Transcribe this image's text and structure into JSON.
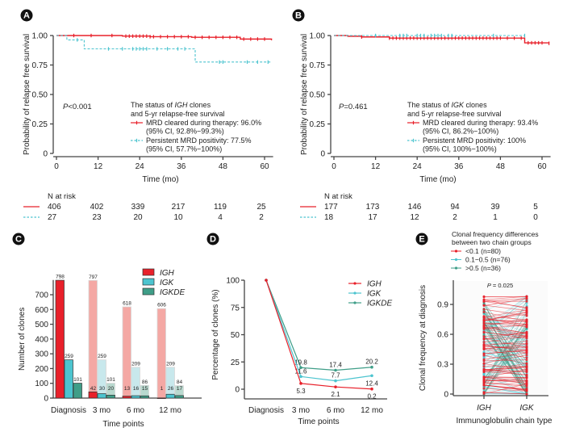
{
  "colors": {
    "red": "#e8202a",
    "cyan": "#4cc4cf",
    "teal": "#3f9e88",
    "light_red": "#f4a8a4",
    "light_cyan": "#c8e8ec",
    "light_teal": "#b9d9cf"
  },
  "chart_data": [
    {
      "panel": "A",
      "type": "line",
      "subtype": "kaplan-meier",
      "ylabel": "Probability of relapse free survival",
      "xlabel": "Time (mo)",
      "xlim": [
        0,
        62
      ],
      "ylim": [
        0,
        1
      ],
      "xticks": [
        "0",
        "12",
        "24",
        "36",
        "48",
        "60"
      ],
      "yticks": [
        "0",
        "0.25",
        "0.50",
        "0.75",
        "1.00"
      ],
      "pvalue": "P<0.001",
      "legend_title_1": "The status of IGH clones",
      "legend_title_2": "and 5-yr relapse-free survival",
      "series": [
        {
          "name": "MRD cleared during therapy: 96.0%",
          "ci": "(95% CI, 92.8%−99.3%)",
          "style": "solid-red",
          "steps": [
            [
              0,
              1.0
            ],
            [
              19,
              0.995
            ],
            [
              27,
              0.99
            ],
            [
              39,
              0.985
            ],
            [
              53,
              0.97
            ],
            [
              62,
              0.96
            ]
          ],
          "censor_x": [
            5,
            10,
            16,
            20,
            21,
            22,
            23,
            24,
            25,
            26,
            27,
            28,
            30,
            32,
            34,
            36,
            38,
            40,
            42,
            44,
            46,
            48,
            50,
            52,
            54,
            56,
            58,
            60
          ]
        },
        {
          "name": "Persistent MRD positivity: 77.5%",
          "ci": "(95% CI, 57.7%−100%)",
          "style": "dashed-cyan",
          "steps": [
            [
              0,
              1.0
            ],
            [
              3,
              0.963
            ],
            [
              8,
              0.887
            ],
            [
              40,
              0.775
            ],
            [
              62,
              0.775
            ]
          ],
          "censor_x": [
            6,
            15,
            19,
            22,
            23,
            24,
            25,
            26,
            29,
            32,
            35,
            37,
            47,
            48,
            55,
            58,
            61
          ]
        }
      ],
      "risk_table": {
        "header": "N at risk",
        "rows": [
          {
            "style": "solid-red",
            "values": [
              "406",
              "402",
              "339",
              "217",
              "119",
              "25"
            ]
          },
          {
            "style": "dashed-cyan",
            "values": [
              "27",
              "23",
              "20",
              "10",
              "4",
              "2"
            ]
          }
        ]
      }
    },
    {
      "panel": "B",
      "type": "line",
      "subtype": "kaplan-meier",
      "ylabel": "Probability of relapse free survival",
      "xlabel": "Time (mo)",
      "xlim": [
        0,
        62
      ],
      "ylim": [
        0,
        1
      ],
      "xticks": [
        "0",
        "12",
        "24",
        "36",
        "48",
        "60"
      ],
      "yticks": [
        "0",
        "0.25",
        "0.50",
        "0.75",
        "1.00"
      ],
      "pvalue": "P=0.461",
      "legend_title_1": "The status of IGK clones",
      "legend_title_2": "and 5-yr relapse-free survival",
      "series": [
        {
          "name": "MRD cleared during therapy: 93.4%",
          "ci": "(95% CI, 86.2%−100%)",
          "style": "solid-red",
          "steps": [
            [
              0,
              1.0
            ],
            [
              4,
              0.994
            ],
            [
              8,
              0.988
            ],
            [
              16,
              0.978
            ],
            [
              55,
              0.938
            ],
            [
              62,
              0.934
            ]
          ],
          "censor_x": [
            8,
            16,
            17,
            18,
            19,
            20,
            21,
            22,
            23,
            24,
            25,
            26,
            27,
            28,
            29,
            30,
            31,
            32,
            33,
            34,
            35,
            36,
            37,
            38,
            39,
            40,
            41,
            42,
            43,
            44,
            45,
            46,
            47,
            48,
            50,
            52,
            54,
            56,
            57,
            58,
            59,
            60,
            62
          ]
        },
        {
          "name": "Persistent MRD positivity: 100%",
          "ci": "(95% CI, 100%−100%)",
          "style": "dashed-cyan",
          "steps": [
            [
              0,
              1.0
            ],
            [
              55,
              1.0
            ]
          ],
          "censor_x": [
            12,
            19,
            20,
            21,
            24,
            25,
            26,
            28,
            29,
            30,
            31,
            33,
            34,
            46,
            55
          ]
        }
      ],
      "risk_table": {
        "header": "N at risk",
        "rows": [
          {
            "style": "solid-red",
            "values": [
              "177",
              "173",
              "146",
              "94",
              "39",
              "5"
            ]
          },
          {
            "style": "dashed-cyan",
            "values": [
              "18",
              "17",
              "12",
              "2",
              "1",
              "0"
            ]
          }
        ]
      }
    },
    {
      "panel": "C",
      "type": "bar",
      "ylabel": "Number of clones",
      "xlabel": "Time points",
      "ylim": [
        0,
        800
      ],
      "yticks": [
        "0",
        "100",
        "200",
        "300",
        "400",
        "500",
        "600",
        "700"
      ],
      "categories": [
        "Diagnosis",
        "3 mo",
        "6 mo",
        "12 mo"
      ],
      "legend": [
        "IGH",
        "IGK",
        "IGKDE"
      ],
      "series": [
        {
          "name": "IGH",
          "values": [
            798,
            42,
            13,
            1
          ],
          "background": [
            null,
            797,
            618,
            606
          ]
        },
        {
          "name": "IGK",
          "values": [
            259,
            30,
            16,
            26
          ],
          "background": [
            null,
            259,
            209,
            209
          ]
        },
        {
          "name": "IGKDE",
          "values": [
            101,
            20,
            15,
            17
          ],
          "background": [
            null,
            101,
            86,
            84
          ]
        }
      ]
    },
    {
      "panel": "D",
      "type": "line",
      "ylabel": "Percentage of clones (%)",
      "xlabel": "Time points",
      "ylim": [
        0,
        100
      ],
      "yticks": [
        "0",
        "25",
        "50",
        "75",
        "100"
      ],
      "categories": [
        "Diagnosis",
        "3 mo",
        "6 mo",
        "12 mo"
      ],
      "legend": [
        "IGH",
        "IGK",
        "IGKDE"
      ],
      "series": [
        {
          "name": "IGH",
          "values": [
            100,
            5.3,
            2.1,
            0.2
          ],
          "labels": [
            "",
            "5.3",
            "2.1",
            "0.2"
          ]
        },
        {
          "name": "IGK",
          "values": [
            100,
            11.6,
            7.7,
            12.4
          ],
          "labels": [
            "",
            "11.6",
            "7.7",
            "12.4"
          ]
        },
        {
          "name": "IGKDE",
          "values": [
            100,
            19.8,
            17.4,
            20.2
          ],
          "labels": [
            "",
            "19.8",
            "17.4",
            "20.2"
          ]
        }
      ]
    },
    {
      "panel": "E",
      "type": "scatter",
      "subtype": "paired-slope",
      "ylabel": "Clonal frequency at diagnosis",
      "xlabel": "Immunoglobulin chain type",
      "ylim": [
        0,
        1.0
      ],
      "yticks": [
        "0",
        "0.3",
        "0.6",
        "0.9"
      ],
      "categories": [
        "IGH",
        "IGK"
      ],
      "pvalue": "P = 0.025",
      "legend_title_1": "Clonal frequency differences",
      "legend_title_2": "between two chain groups",
      "legend": [
        "<0.1 (n=80)",
        "0.1−0.5 (n=76)",
        ">0.5 (n=36)"
      ],
      "group_counts": [
        80,
        76,
        36
      ]
    }
  ],
  "panels": {
    "A": "A",
    "B": "B",
    "C": "C",
    "D": "D",
    "E": "E"
  }
}
